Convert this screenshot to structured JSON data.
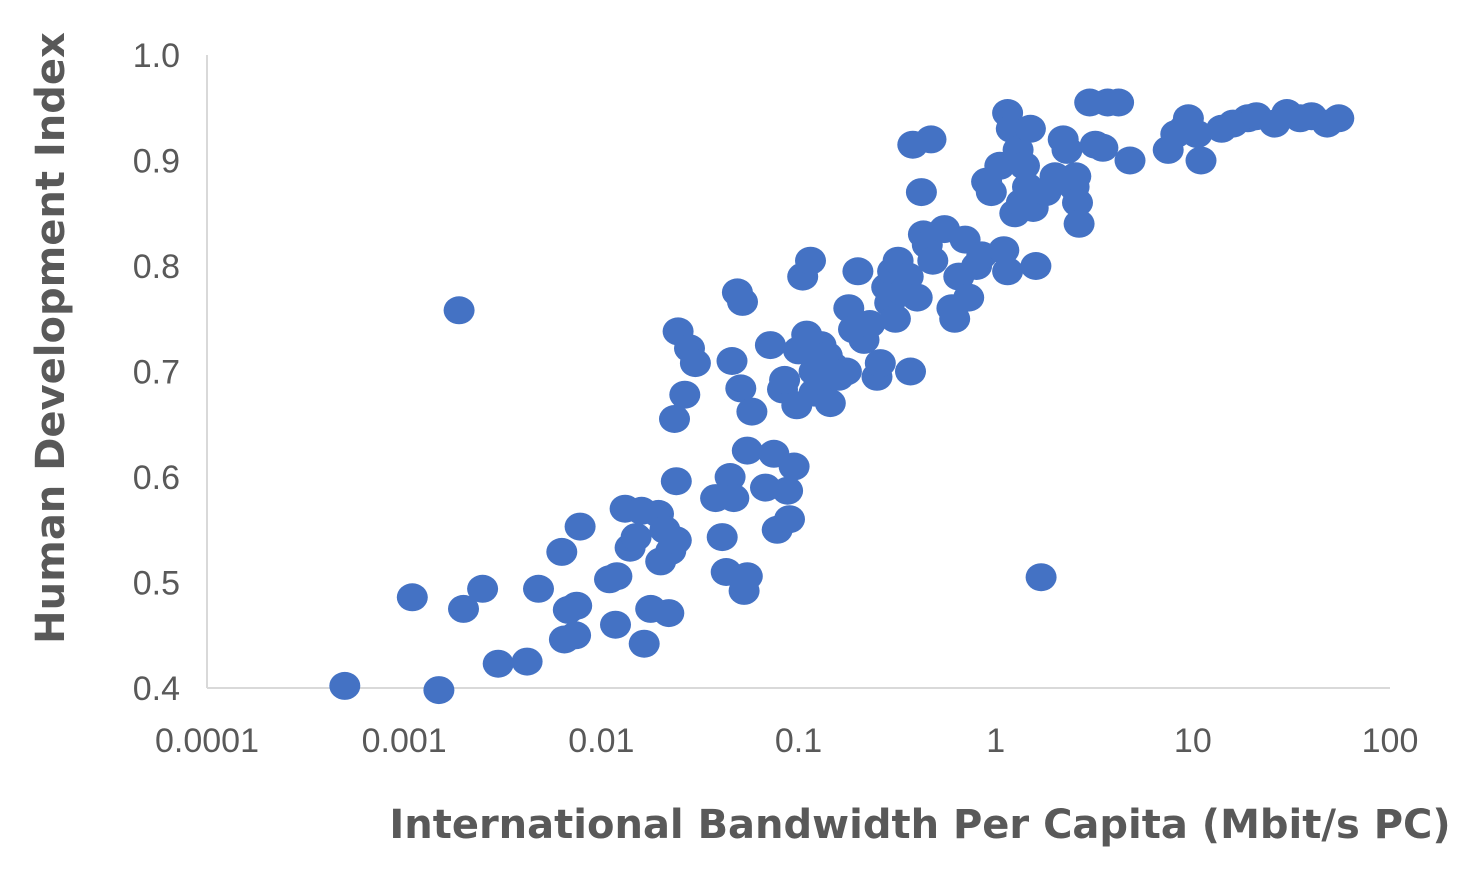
{
  "chart_data": {
    "type": "scatter",
    "title": "",
    "xlabel": "International Bandwidth Per Capita (Mbit/s PC)",
    "ylabel": "Human Development Index",
    "x_scale": "log",
    "xlim": [
      0.0001,
      100
    ],
    "ylim": [
      0.4,
      1.0
    ],
    "x_ticks": [
      "0.0001",
      "0.001",
      "0.01",
      "0.1",
      "1",
      "10",
      "100"
    ],
    "y_ticks": [
      "0.4",
      "0.5",
      "0.6",
      "0.7",
      "0.8",
      "0.9",
      "1.0"
    ],
    "grid": false,
    "legend": "none",
    "marker_color": "#4472C4",
    "axis_color": "#D9D9D9",
    "text_color": "#595959",
    "points": [
      [
        0.0005,
        0.402
      ],
      [
        0.0015,
        0.398
      ],
      [
        0.0011,
        0.486
      ],
      [
        0.002,
        0.475
      ],
      [
        0.0025,
        0.494
      ],
      [
        0.0019,
        0.758
      ],
      [
        0.003,
        0.423
      ],
      [
        0.0042,
        0.425
      ],
      [
        0.0048,
        0.494
      ],
      [
        0.0063,
        0.529
      ],
      [
        0.0068,
        0.474
      ],
      [
        0.0065,
        0.446
      ],
      [
        0.0075,
        0.478
      ],
      [
        0.0074,
        0.45
      ],
      [
        0.0078,
        0.553
      ],
      [
        0.011,
        0.503
      ],
      [
        0.012,
        0.506
      ],
      [
        0.0118,
        0.46
      ],
      [
        0.0132,
        0.57
      ],
      [
        0.014,
        0.533
      ],
      [
        0.015,
        0.543
      ],
      [
        0.016,
        0.568
      ],
      [
        0.0165,
        0.442
      ],
      [
        0.0178,
        0.475
      ],
      [
        0.0195,
        0.565
      ],
      [
        0.02,
        0.52
      ],
      [
        0.021,
        0.55
      ],
      [
        0.022,
        0.471
      ],
      [
        0.0225,
        0.53
      ],
      [
        0.024,
        0.54
      ],
      [
        0.024,
        0.596
      ],
      [
        0.0235,
        0.655
      ],
      [
        0.0245,
        0.738
      ],
      [
        0.0265,
        0.678
      ],
      [
        0.028,
        0.722
      ],
      [
        0.03,
        0.708
      ],
      [
        0.038,
        0.58
      ],
      [
        0.041,
        0.543
      ],
      [
        0.043,
        0.51
      ],
      [
        0.045,
        0.6
      ],
      [
        0.046,
        0.71
      ],
      [
        0.047,
        0.58
      ],
      [
        0.049,
        0.775
      ],
      [
        0.052,
        0.766
      ],
      [
        0.051,
        0.684
      ],
      [
        0.053,
        0.492
      ],
      [
        0.055,
        0.625
      ],
      [
        0.055,
        0.506
      ],
      [
        0.058,
        0.662
      ],
      [
        0.068,
        0.59
      ],
      [
        0.072,
        0.725
      ],
      [
        0.075,
        0.622
      ],
      [
        0.078,
        0.55
      ],
      [
        0.083,
        0.683
      ],
      [
        0.085,
        0.692
      ],
      [
        0.088,
        0.587
      ],
      [
        0.09,
        0.56
      ],
      [
        0.095,
        0.61
      ],
      [
        0.098,
        0.668
      ],
      [
        0.1,
        0.72
      ],
      [
        0.105,
        0.79
      ],
      [
        0.11,
        0.735
      ],
      [
        0.115,
        0.805
      ],
      [
        0.12,
        0.7
      ],
      [
        0.12,
        0.68
      ],
      [
        0.125,
        0.71
      ],
      [
        0.13,
        0.725
      ],
      [
        0.135,
        0.69
      ],
      [
        0.14,
        0.715
      ],
      [
        0.145,
        0.67
      ],
      [
        0.15,
        0.705
      ],
      [
        0.16,
        0.695
      ],
      [
        0.175,
        0.7
      ],
      [
        0.18,
        0.76
      ],
      [
        0.19,
        0.74
      ],
      [
        0.2,
        0.795
      ],
      [
        0.215,
        0.73
      ],
      [
        0.23,
        0.745
      ],
      [
        0.25,
        0.695
      ],
      [
        0.26,
        0.708
      ],
      [
        0.28,
        0.78
      ],
      [
        0.29,
        0.765
      ],
      [
        0.3,
        0.795
      ],
      [
        0.31,
        0.75
      ],
      [
        0.32,
        0.805
      ],
      [
        0.34,
        0.775
      ],
      [
        0.36,
        0.79
      ],
      [
        0.37,
        0.7
      ],
      [
        0.38,
        0.915
      ],
      [
        0.4,
        0.77
      ],
      [
        0.42,
        0.87
      ],
      [
        0.43,
        0.83
      ],
      [
        0.45,
        0.82
      ],
      [
        0.47,
        0.92
      ],
      [
        0.48,
        0.805
      ],
      [
        0.55,
        0.835
      ],
      [
        0.6,
        0.76
      ],
      [
        0.62,
        0.75
      ],
      [
        0.65,
        0.79
      ],
      [
        0.7,
        0.825
      ],
      [
        0.73,
        0.77
      ],
      [
        0.8,
        0.8
      ],
      [
        0.85,
        0.81
      ],
      [
        0.9,
        0.88
      ],
      [
        0.95,
        0.87
      ],
      [
        1.05,
        0.895
      ],
      [
        1.1,
        0.815
      ],
      [
        1.15,
        0.945
      ],
      [
        1.15,
        0.795
      ],
      [
        1.2,
        0.93
      ],
      [
        1.25,
        0.85
      ],
      [
        1.3,
        0.91
      ],
      [
        1.35,
        0.86
      ],
      [
        1.4,
        0.895
      ],
      [
        1.45,
        0.875
      ],
      [
        1.5,
        0.93
      ],
      [
        1.55,
        0.855
      ],
      [
        1.6,
        0.8
      ],
      [
        1.7,
        0.505
      ],
      [
        1.8,
        0.87
      ],
      [
        2.0,
        0.885
      ],
      [
        2.2,
        0.92
      ],
      [
        2.3,
        0.91
      ],
      [
        2.5,
        0.875
      ],
      [
        2.55,
        0.885
      ],
      [
        2.6,
        0.86
      ],
      [
        2.65,
        0.84
      ],
      [
        3.0,
        0.955
      ],
      [
        3.2,
        0.915
      ],
      [
        3.5,
        0.912
      ],
      [
        3.7,
        0.955
      ],
      [
        4.2,
        0.955
      ],
      [
        4.8,
        0.9
      ],
      [
        7.5,
        0.91
      ],
      [
        8.2,
        0.925
      ],
      [
        9.0,
        0.93
      ],
      [
        9.5,
        0.94
      ],
      [
        10.5,
        0.925
      ],
      [
        11.0,
        0.9
      ],
      [
        14.0,
        0.93
      ],
      [
        16.0,
        0.935
      ],
      [
        19.0,
        0.94
      ],
      [
        21.0,
        0.942
      ],
      [
        26.0,
        0.935
      ],
      [
        30.0,
        0.945
      ],
      [
        35.0,
        0.94
      ],
      [
        40.0,
        0.942
      ],
      [
        48.0,
        0.935
      ],
      [
        55.0,
        0.94
      ]
    ]
  }
}
